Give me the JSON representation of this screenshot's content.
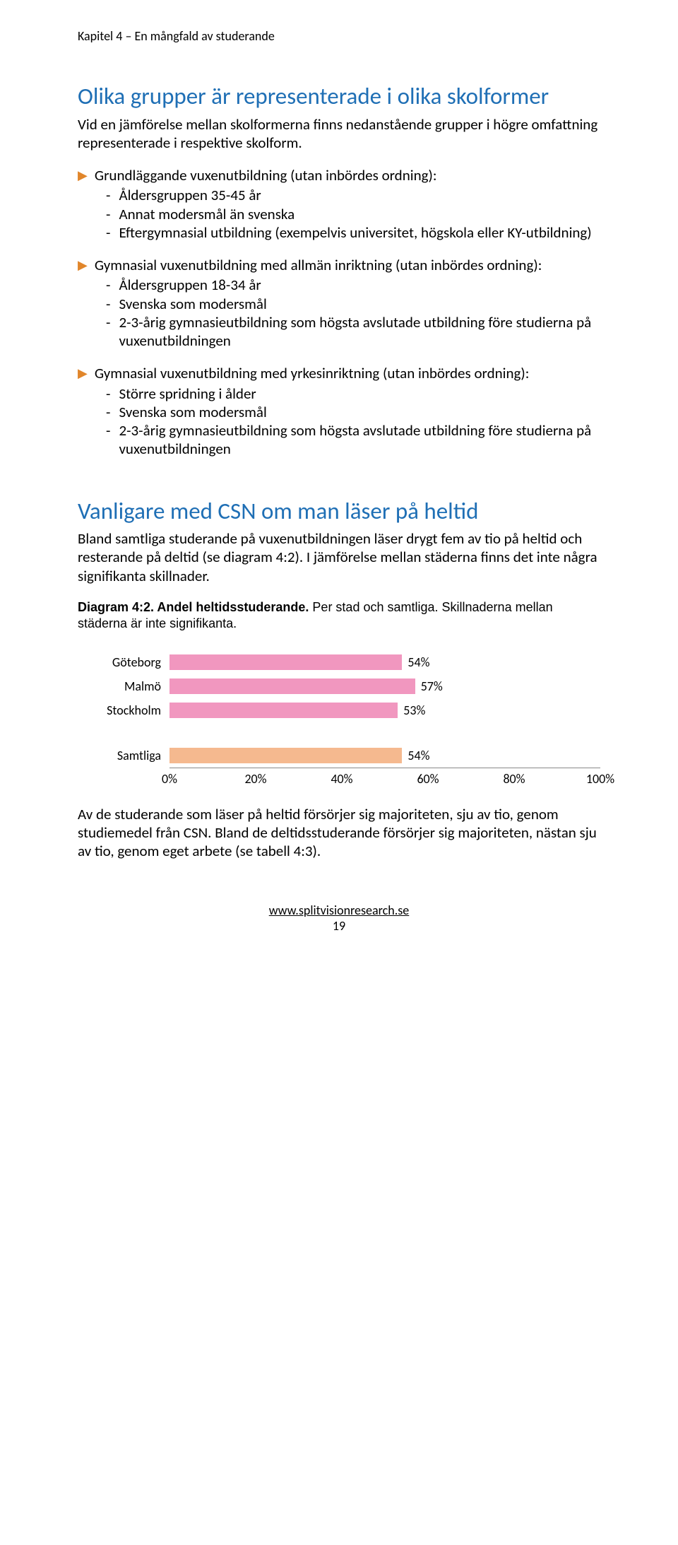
{
  "chapterHeader": "Kapitel 4 – En mångfald av studerande",
  "heading1": "Olika grupper är representerade i olika skolformer",
  "intro": "Vid en jämförelse mellan skolformerna finns nedanstående grupper i högre omfattning representerade i respektive skolform.",
  "bullets": [
    {
      "head": "Grundläggande vuxenutbildning (utan inbördes ordning):",
      "items": [
        "Åldersgruppen 35-45 år",
        "Annat modersmål än svenska",
        "Eftergymnasial utbildning (exempelvis universitet, högskola eller KY-utbildning)"
      ]
    },
    {
      "head": "Gymnasial vuxenutbildning med allmän inriktning (utan inbördes ordning):",
      "items": [
        "Åldersgruppen 18-34 år",
        "Svenska som modersmål",
        "2-3-årig gymnasieutbildning som högsta avslutade utbildning före studierna på vuxenutbildningen"
      ]
    },
    {
      "head": "Gymnasial vuxenutbildning med yrkesinriktning (utan inbördes ordning):",
      "items": [
        "Större spridning i ålder",
        "Svenska som modersmål",
        "2-3-årig gymnasieutbildning som högsta avslutade utbildning före studierna på vuxenutbildningen"
      ]
    }
  ],
  "heading2": "Vanligare med CSN om man läser på heltid",
  "para2": "Bland samtliga studerande på vuxenutbildningen läser drygt fem av tio på heltid och resterande på deltid (se diagram 4:2). I jämförelse mellan städerna finns det inte några signifikanta skillnader.",
  "diagramCaptionBold": "Diagram 4:2. Andel heltidsstuderande.",
  "diagramCaptionRest1": " Per stad och samtliga. ",
  "diagramCaptionRest2": "Skillnaderna mellan städerna är inte signifikanta.",
  "chart": {
    "type": "bar-horizontal",
    "xmin": 0,
    "xmax": 100,
    "xtick_step": 20,
    "xtick_labels": [
      "0%",
      "20%",
      "40%",
      "60%",
      "80%",
      "100%"
    ],
    "bar_color_main": "#f197bf",
    "bar_color_alt": "#f5b98f",
    "background": "#ffffff",
    "label_fontsize": 18,
    "rows": [
      {
        "label": "Göteborg",
        "value": 54,
        "display": "54%",
        "color": "#f197bf"
      },
      {
        "label": "Malmö",
        "value": 57,
        "display": "57%",
        "color": "#f197bf"
      },
      {
        "label": "Stockholm",
        "value": 53,
        "display": "53%",
        "color": "#f197bf"
      }
    ],
    "summary": {
      "label": "Samtliga",
      "value": 54,
      "display": "54%",
      "color": "#f5b98f"
    }
  },
  "para3": "Av de studerande som läser på heltid försörjer sig majoriteten, sju av tio, genom studiemedel från CSN. Bland de deltidsstuderande försörjer sig majoriteten, nästan sju av tio, genom eget arbete (se tabell 4:3).",
  "footerUrl": "www.splitvisionresearch.se",
  "footerPage": "19"
}
